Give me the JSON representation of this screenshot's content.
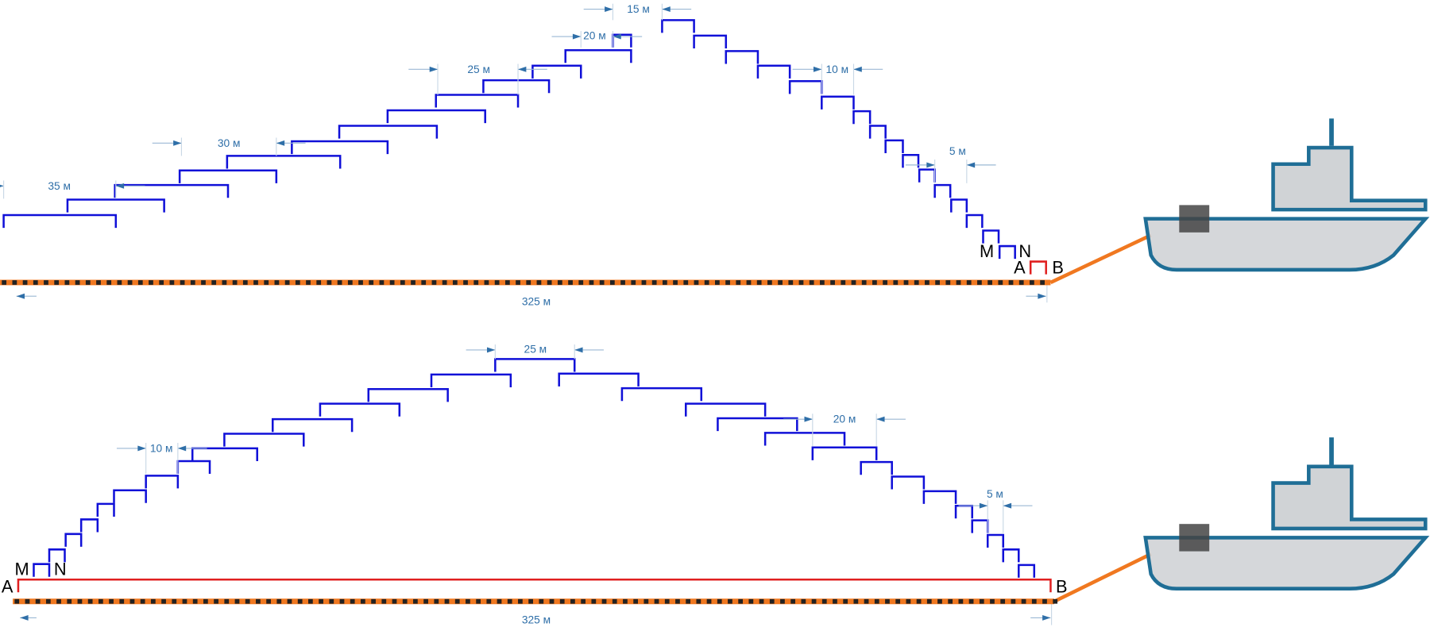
{
  "top": {
    "dimensions": [
      "15 м",
      "20 м",
      "25 м",
      "30 м",
      "35 м",
      "10 м",
      "5 м"
    ],
    "electrodes": [
      "M",
      "N",
      "A",
      "B"
    ],
    "length": "325 м"
  },
  "bottom": {
    "dimensions": [
      "25 м",
      "10 м",
      "20 м",
      "5 м"
    ],
    "electrodes": [
      "M",
      "N",
      "A",
      "B"
    ],
    "length": "325 м"
  }
}
